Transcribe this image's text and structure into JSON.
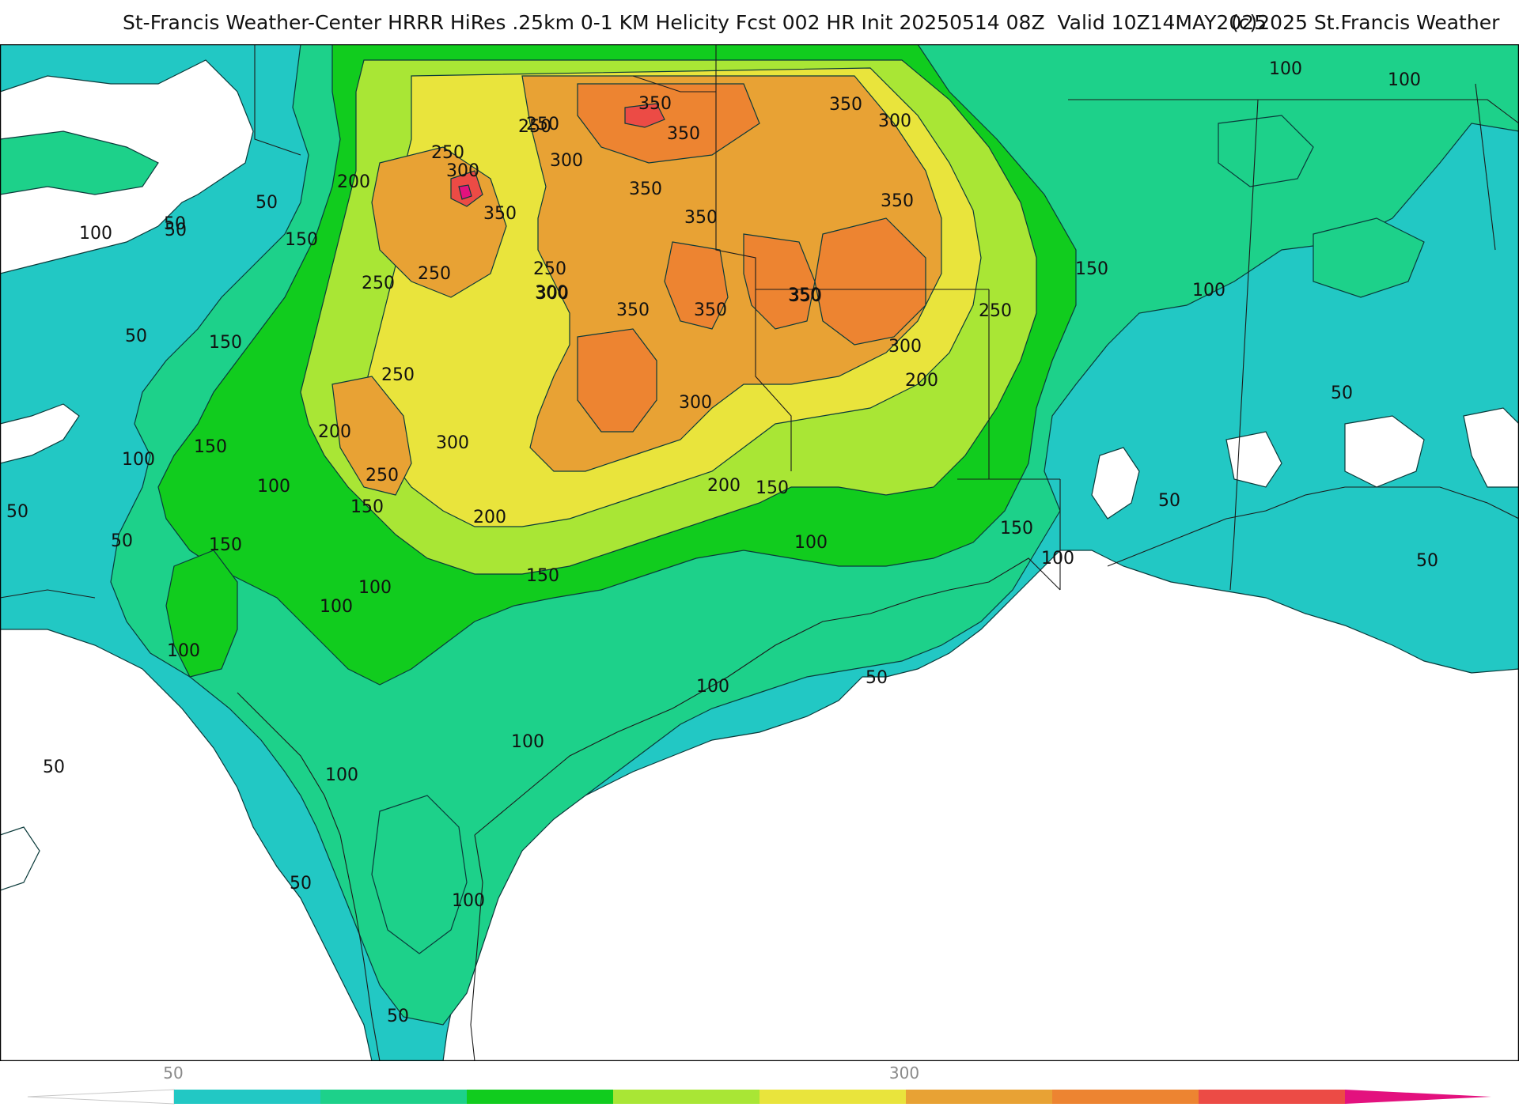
{
  "title": {
    "text": "St-Francis Weather-Center HRRR HiRes .25km 0-1 KM Helicity Fcst 002 HR Init 20250514 08Z  Valid 10Z14MAY2025",
    "copyright": "(c)2025 St.Francis Weather"
  },
  "map": {
    "field": "0-1 KM Helicity",
    "contour_labels": [
      "100",
      "50",
      "200",
      "50",
      "100",
      "50",
      "150",
      "250",
      "250",
      "300",
      "350",
      "250",
      "300",
      "350",
      "350",
      "350",
      "300",
      "350",
      "350",
      "250",
      "300",
      "250",
      "350",
      "350",
      "350",
      "250",
      "300",
      "150",
      "100",
      "50",
      "150",
      "250",
      "200",
      "300",
      "250",
      "300",
      "300",
      "350",
      "350",
      "200",
      "100",
      "50",
      "250",
      "150",
      "200",
      "100",
      "150",
      "100",
      "150",
      "200",
      "50",
      "150",
      "150",
      "100",
      "100",
      "100",
      "150",
      "100",
      "50",
      "50",
      "100",
      "50",
      "100",
      "50",
      "100",
      "50",
      "100",
      "100",
      "50",
      "50"
    ]
  },
  "colorbar": {
    "tick_labels": [
      "50",
      "300"
    ],
    "colors": [
      "#22c8c4",
      "#1dd18a",
      "#11cc1e",
      "#a9e635",
      "#e9e43c",
      "#e8a234",
      "#ed8431",
      "#ec4b45",
      "#e3117e"
    ]
  }
}
